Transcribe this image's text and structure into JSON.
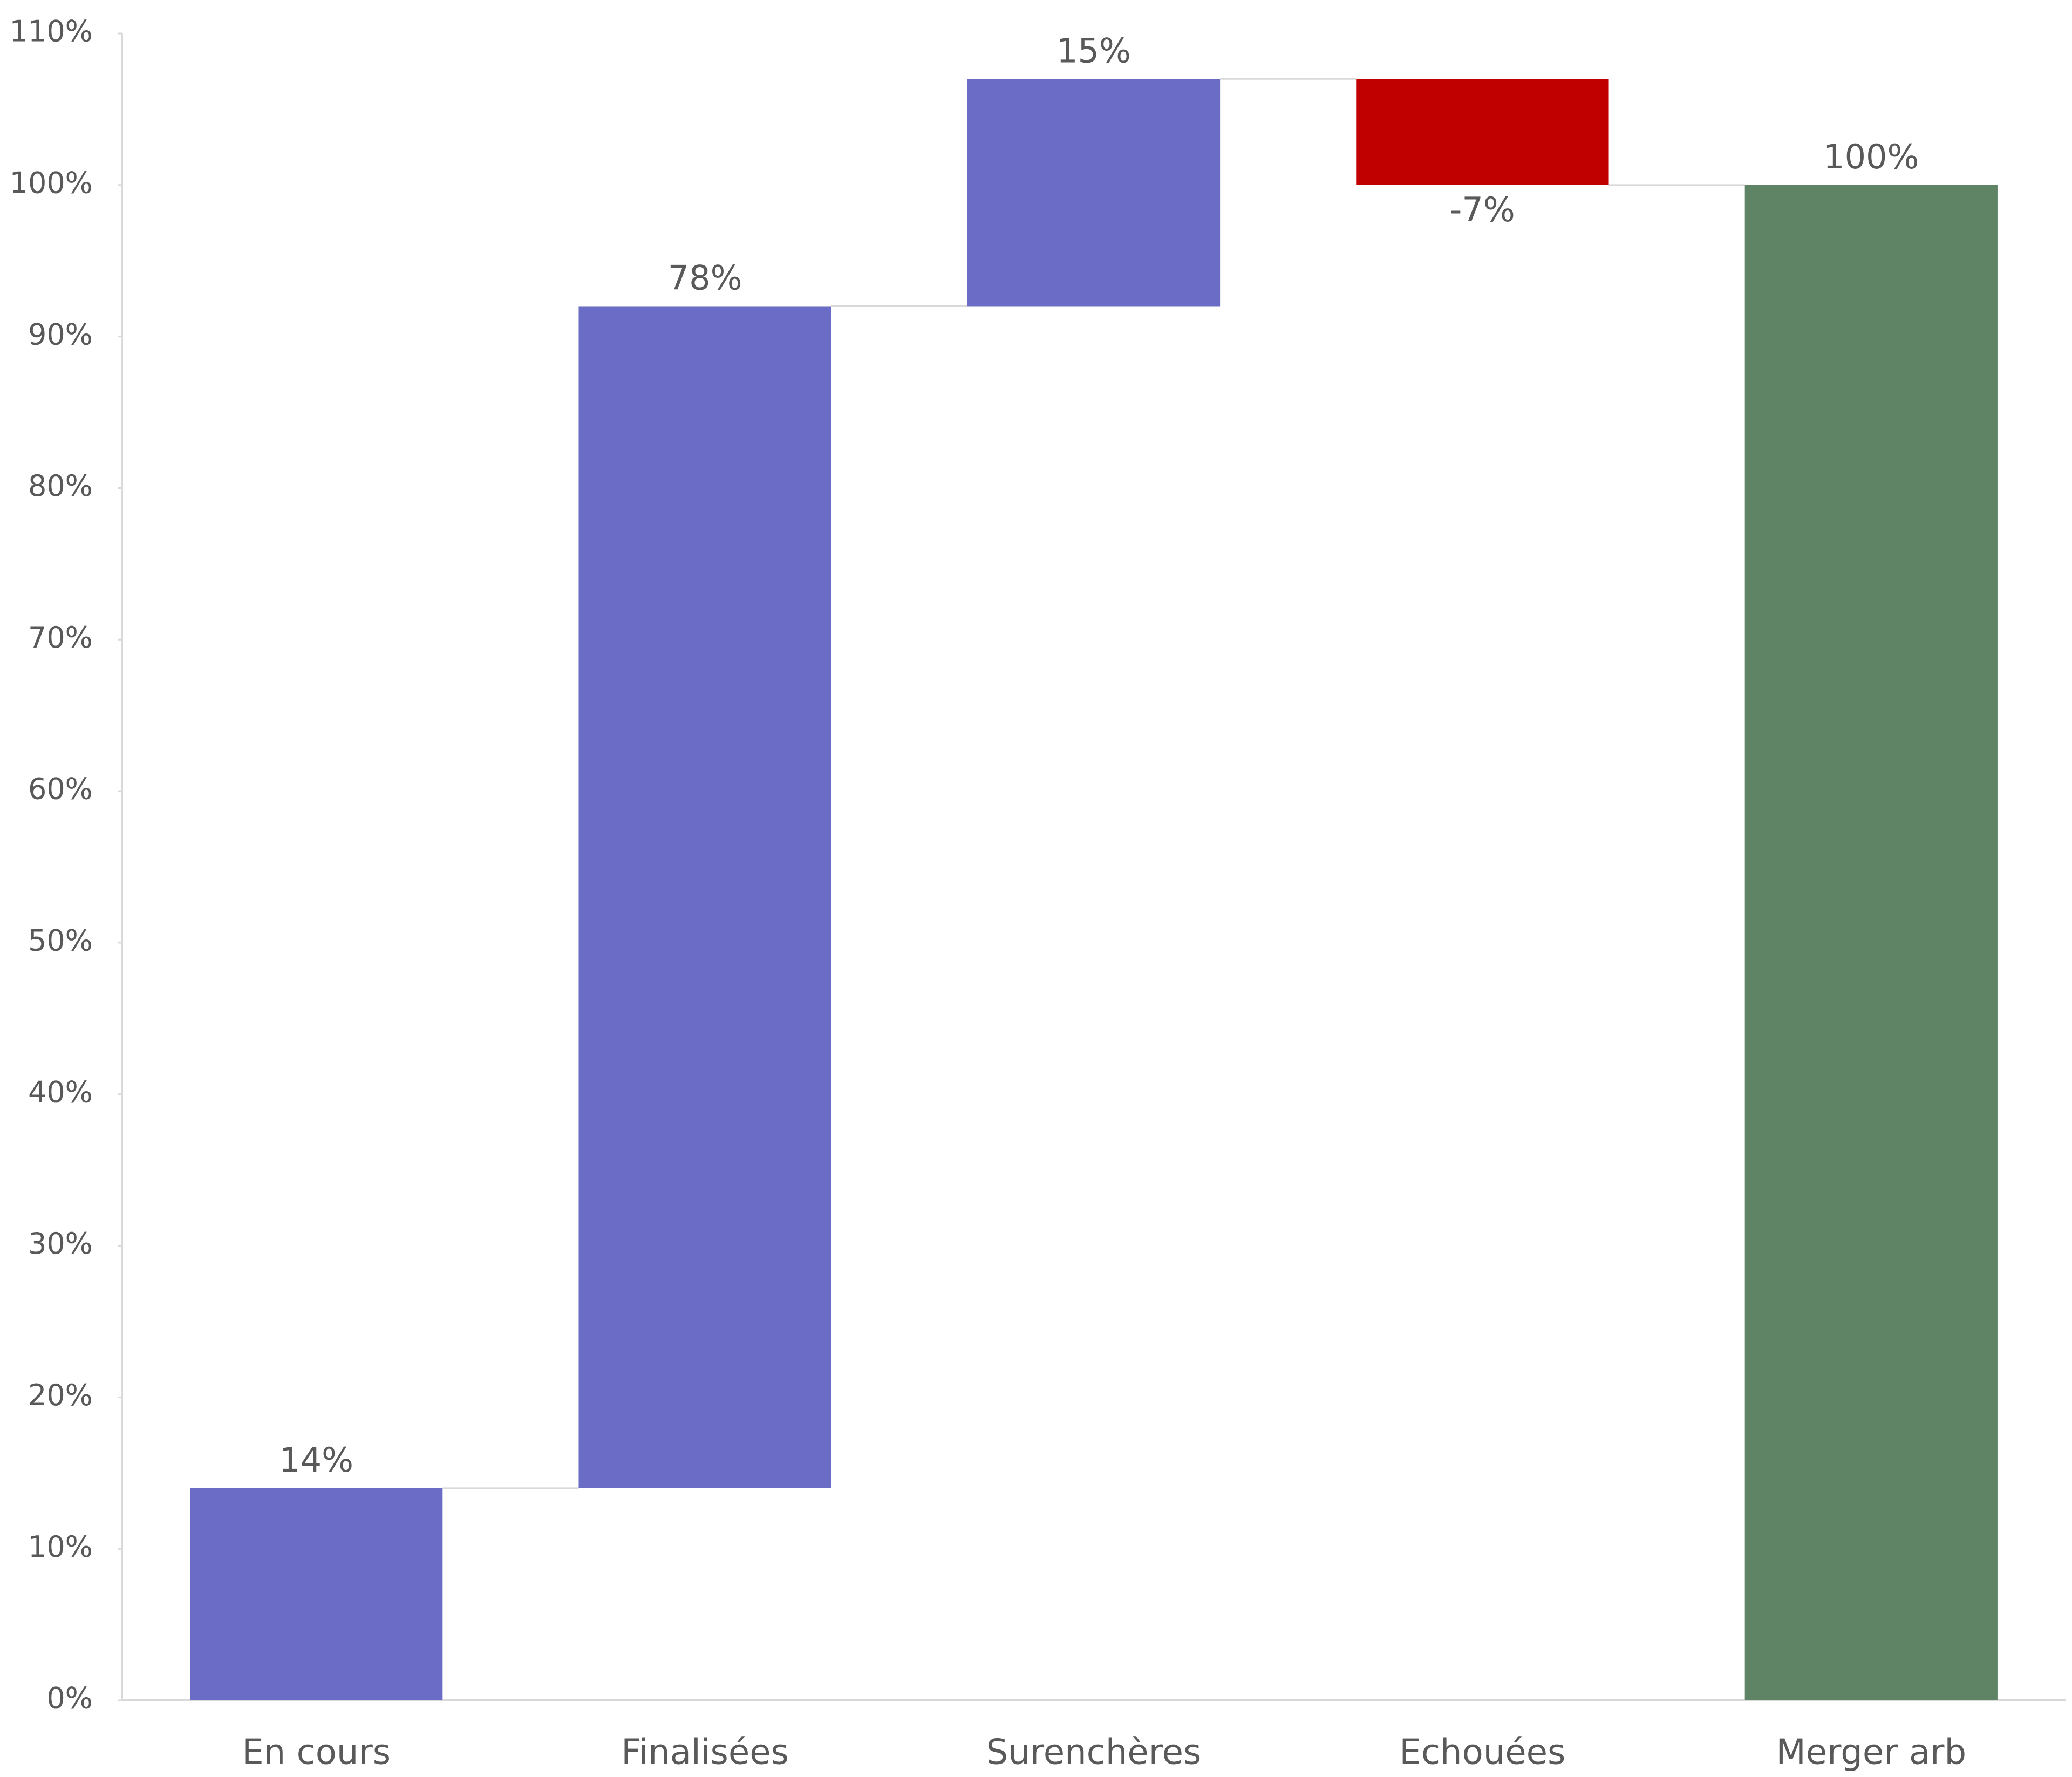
{
  "chart_data": {
    "type": "waterfall",
    "categories": [
      "En cours",
      "Finalisées",
      "Surenchères",
      "Echouées",
      "Merger arb"
    ],
    "values": [
      14,
      78,
      15,
      -7,
      100
    ],
    "value_labels": [
      "14%",
      "78%",
      "15%",
      "-7%",
      "100%"
    ],
    "measure": [
      "relative",
      "relative",
      "relative",
      "relative",
      "total"
    ],
    "increase_color": "#6a6cc5",
    "decrease_color": "#c00000",
    "total_color": "#5e8465",
    "ylim": [
      0,
      110
    ],
    "yticks": [
      {
        "value": 0,
        "label": "0%"
      },
      {
        "value": 10,
        "label": "10%"
      },
      {
        "value": 20,
        "label": "20%"
      },
      {
        "value": 30,
        "label": "30%"
      },
      {
        "value": 40,
        "label": "40%"
      },
      {
        "value": 50,
        "label": "50%"
      },
      {
        "value": 60,
        "label": "60%"
      },
      {
        "value": 70,
        "label": "70%"
      },
      {
        "value": 80,
        "label": "80%"
      },
      {
        "value": 90,
        "label": "90%"
      },
      {
        "value": 100,
        "label": "100%"
      },
      {
        "value": 110,
        "label": "110%"
      }
    ],
    "grid": false
  }
}
